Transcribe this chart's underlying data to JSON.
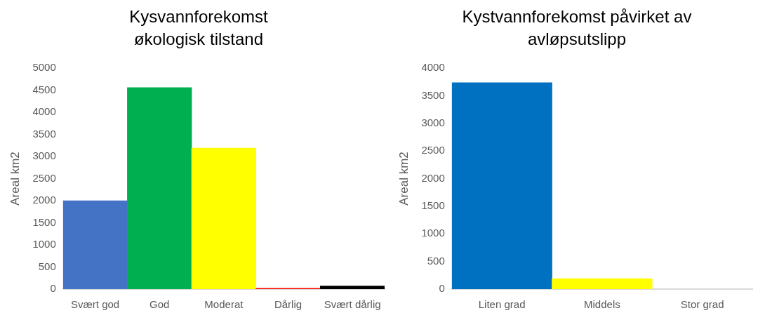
{
  "chart_data": [
    {
      "type": "bar",
      "title": "Kysvannforekomst økologisk tilstand",
      "ylabel": "Areal km2",
      "categories": [
        "Svært god",
        "God",
        "Moderat",
        "Dårlig",
        "Svært dårlig"
      ],
      "values": [
        2000,
        4560,
        3190,
        20,
        70
      ],
      "colors": [
        "#4472c4",
        "#00b050",
        "#ffff00",
        "#ff0000",
        "#000000"
      ],
      "ylim": [
        0,
        5000
      ],
      "yticks": [
        0,
        500,
        1000,
        1500,
        2000,
        2500,
        3000,
        3500,
        4000,
        4500,
        5000
      ],
      "grid": false
    },
    {
      "type": "bar",
      "title": "Kystvannforekomst påvirket av avløpsutslipp",
      "ylabel": "Areal km2",
      "categories": [
        "Liten grad",
        "Middels",
        "Stor grad"
      ],
      "values": [
        3735,
        190,
        0
      ],
      "colors": [
        "#0070c0",
        "#ffff00",
        "#d9d9d9"
      ],
      "ylim": [
        0,
        4000
      ],
      "yticks": [
        0,
        500,
        1000,
        1500,
        2000,
        2500,
        3000,
        3500,
        4000
      ],
      "grid": false
    }
  ]
}
